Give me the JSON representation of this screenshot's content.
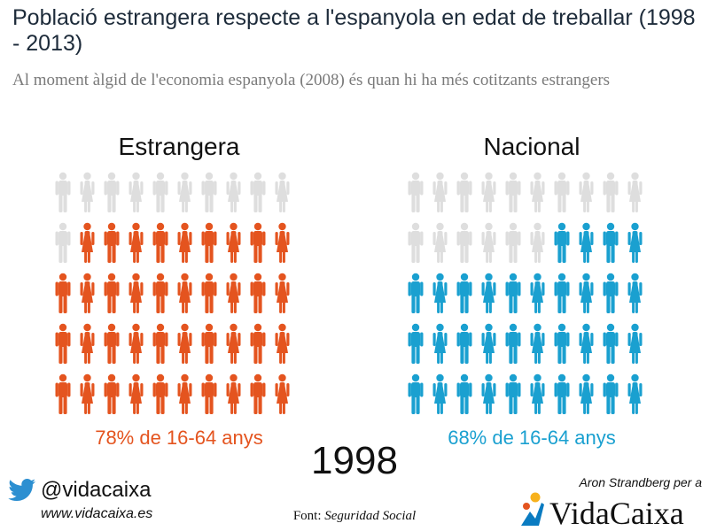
{
  "title": "Població estrangera respecte a l'espanyola en edat de treballar (1998 - 2013)",
  "subtitle": "Al moment àlgid de l'economia espanyola (2008) és quan hi ha més cotitzants estrangers",
  "year": "1998",
  "colors": {
    "foreign": "#e4541f",
    "national": "#1aa0d0",
    "inactive": "#dedede",
    "logo_blue": "#0a7bc1",
    "logo_star": "#f7b11c"
  },
  "chart_data": {
    "type": "pictogram",
    "unit_grid": {
      "rows": 5,
      "cols": 10
    },
    "groups": [
      {
        "name": "Estrangera",
        "label": "78% de 16-64 anys",
        "value_percent": 78,
        "filled_icons": 39,
        "total_icons": 50,
        "color": "#e4541f"
      },
      {
        "name": "Nacional",
        "label": "68% de 16-64 anys",
        "value_percent": 68,
        "filled_icons": 34,
        "total_icons": 50,
        "color": "#1aa0d0"
      }
    ]
  },
  "footer": {
    "twitter_icon": "twitter-bird-icon",
    "handle": "@vidacaixa",
    "website": "www.vidacaixa.es",
    "source_prefix": "Font: ",
    "source_name": "Seguridad Social",
    "author": "Aron Strandberg per a",
    "logo_text": "VidaCaixa",
    "logo_icon": "caixa-star-icon"
  }
}
